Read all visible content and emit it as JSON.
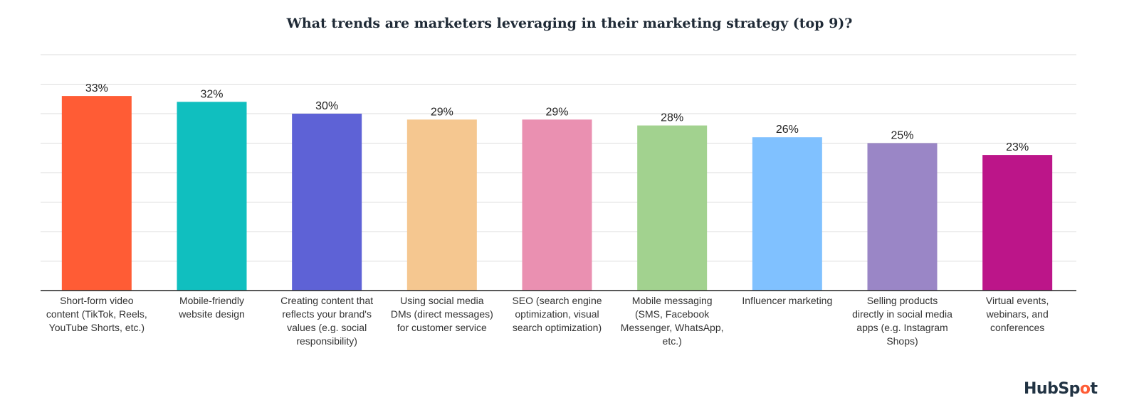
{
  "chart_data": {
    "type": "bar",
    "title": "What trends are marketers leveraging in their marketing strategy (top 9)?",
    "categories": [
      "Short-form video\ncontent (TikTok, Reels,\nYouTube Shorts, etc.)",
      "Mobile-friendly\nwebsite design",
      "Creating content that\nreflects your brand's\nvalues (e.g. social\nresponsibility)",
      "Using social media\nDMs (direct messages)\nfor customer service",
      "SEO (search engine\noptimization, visual\nsearch optimization)",
      "Mobile messaging\n(SMS, Facebook\nMessenger, WhatsApp,\netc.)",
      "Influencer marketing",
      "Selling products\ndirectly in social media\napps (e.g. Instagram\nShops)",
      "Virtual events,\nwebinars, and\nconferences"
    ],
    "values": [
      33,
      32,
      30,
      29,
      29,
      28,
      26,
      25,
      23
    ],
    "data_labels": [
      "33%",
      "32%",
      "30%",
      "29%",
      "29%",
      "28%",
      "26%",
      "25%",
      "23%"
    ],
    "colors": [
      "#FF5C35",
      "#10BFBF",
      "#5E62D6",
      "#F5C790",
      "#EA90B1",
      "#A2D28F",
      "#80C1FF",
      "#9A86C6",
      "#BC1589"
    ],
    "ylim": [
      0,
      40
    ],
    "grid": true,
    "grid_step": 5,
    "xlabel": "",
    "ylabel": ""
  },
  "logo": {
    "text": "HubSpot",
    "accent": "#FF5C35"
  }
}
